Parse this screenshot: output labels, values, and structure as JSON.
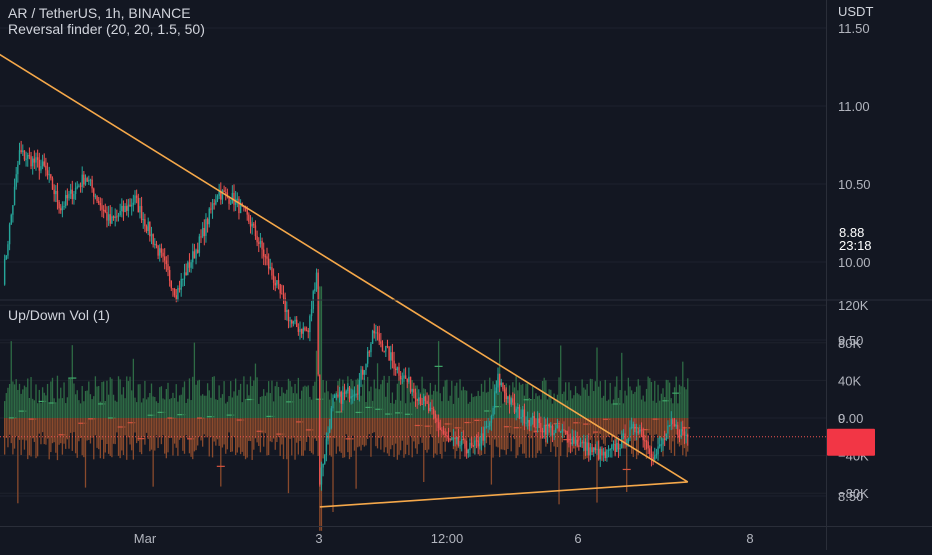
{
  "header": {
    "symbol_line": "AR / TetherUS, 1h, BINANCE",
    "indicator_line": "Reversal finder (20, 20, 1.5, 50)",
    "volume_title": "Up/Down Vol (1)"
  },
  "price_axis": {
    "unit": "USDT",
    "ticks": [
      "11.50",
      "11.00",
      "10.50",
      "10.00",
      "9.50",
      "9.00",
      "8.50"
    ],
    "tick_values": [
      11.5,
      11.0,
      10.5,
      10.0,
      9.5,
      9.0,
      8.5
    ]
  },
  "volume_axis": {
    "ticks": [
      "120K",
      "80K",
      "40K",
      "0",
      "−40K",
      "−80K"
    ],
    "tick_values": [
      120000,
      80000,
      40000,
      0,
      -40000,
      -80000
    ]
  },
  "time_axis": {
    "labels": [
      "Mar",
      "3",
      "12:00",
      "6",
      "8"
    ]
  },
  "last_price": {
    "value": "8.88",
    "countdown": "23:18"
  },
  "colors": {
    "background": "#131722",
    "up": "#26a69a",
    "down": "#ef5350",
    "vol_up": "#2e6b45",
    "vol_down": "#8a4a2c",
    "trendline": "#f5a84a",
    "price_label": "#f23645"
  },
  "chart_data": [
    {
      "type": "candlestick",
      "title": "AR / TetherUS, 1h, BINANCE",
      "ylabel": "USDT",
      "ylim": [
        8.2,
        11.7
      ],
      "x_labels": [
        "Mar",
        "3",
        "12:00",
        "6",
        "8"
      ],
      "approx_price_path": [
        [
          0,
          9.9
        ],
        [
          10,
          10.7
        ],
        [
          25,
          10.6
        ],
        [
          35,
          10.35
        ],
        [
          50,
          10.55
        ],
        [
          65,
          10.25
        ],
        [
          80,
          10.4
        ],
        [
          95,
          10.05
        ],
        [
          105,
          9.8
        ],
        [
          120,
          10.15
        ],
        [
          130,
          10.45
        ],
        [
          140,
          10.4
        ],
        [
          150,
          10.25
        ],
        [
          160,
          10.0
        ],
        [
          175,
          9.6
        ],
        [
          185,
          9.55
        ],
        [
          190,
          9.95
        ],
        [
          192,
          8.6
        ],
        [
          200,
          9.1
        ],
        [
          215,
          9.2
        ],
        [
          225,
          9.55
        ],
        [
          240,
          9.3
        ],
        [
          255,
          9.1
        ],
        [
          270,
          8.85
        ],
        [
          285,
          8.8
        ],
        [
          295,
          8.95
        ],
        [
          300,
          9.25
        ],
        [
          310,
          9.05
        ],
        [
          325,
          8.95
        ],
        [
          340,
          8.9
        ],
        [
          355,
          8.8
        ],
        [
          365,
          8.75
        ],
        [
          375,
          8.85
        ],
        [
          385,
          8.95
        ],
        [
          395,
          8.75
        ],
        [
          405,
          8.95
        ],
        [
          415,
          8.88
        ]
      ],
      "last_close": 8.88,
      "trendlines": [
        {
          "name": "descending",
          "from": [
            -5,
            11.35
          ],
          "to": [
            415,
            8.59
          ]
        },
        {
          "name": "ascending",
          "from": [
            192,
            8.43
          ],
          "to": [
            415,
            8.59
          ]
        }
      ]
    },
    {
      "type": "bar",
      "title": "Up/Down Vol (1)",
      "ylim": [
        -140000,
        150000
      ],
      "series": []
    }
  ]
}
